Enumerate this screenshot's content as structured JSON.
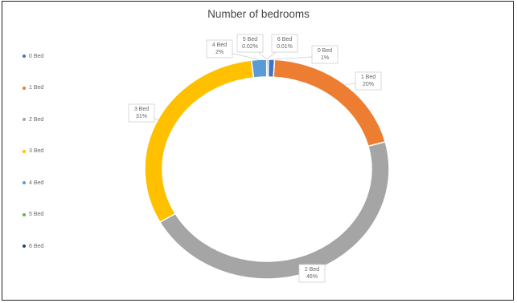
{
  "chart_data": {
    "type": "pie",
    "variant": "doughnut",
    "title": "Number of bedrooms",
    "legend_position": "left",
    "slices": [
      {
        "label": "0 Bed",
        "value": 1,
        "display": "1%",
        "color": "#4472C4"
      },
      {
        "label": "1 Bed",
        "value": 20,
        "display": "20%",
        "color": "#ED7D31"
      },
      {
        "label": "2 Bed",
        "value": 46,
        "display": "46%",
        "color": "#A5A5A5"
      },
      {
        "label": "3 Bed",
        "value": 31,
        "display": "31%",
        "color": "#FFC000"
      },
      {
        "label": "4 Bed",
        "value": 2,
        "display": "2%",
        "color": "#5B9BD5"
      },
      {
        "label": "5 Bed",
        "value": 0.02,
        "display": "0.02%",
        "color": "#70AD47"
      },
      {
        "label": "6 Bed",
        "value": 0.01,
        "display": "0.01%",
        "color": "#264478"
      }
    ]
  }
}
